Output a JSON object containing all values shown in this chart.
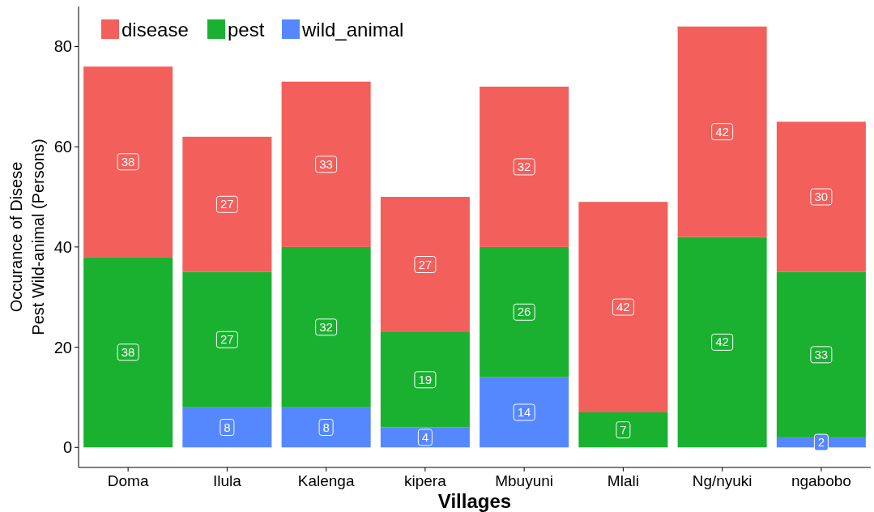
{
  "chart_data": {
    "type": "bar",
    "stacked": true,
    "xlabel": "Villages",
    "ylabel": "Occurance of Disese\nPest Wild-animal (Persons)",
    "categories": [
      "Doma",
      "Ilula",
      "Kalenga",
      "kipera",
      "Mbuyuni",
      "Mlali",
      "Ng/nyuki",
      "ngabobo"
    ],
    "series": [
      {
        "name": "wild_animal",
        "color": "#5588ff",
        "values": [
          null,
          8,
          8,
          4,
          14,
          null,
          null,
          2
        ]
      },
      {
        "name": "pest",
        "color": "#1ab130",
        "values": [
          38,
          27,
          32,
          19,
          26,
          7,
          42,
          33
        ]
      },
      {
        "name": "disease",
        "color": "#f35f5a",
        "values": [
          38,
          27,
          33,
          27,
          32,
          42,
          42,
          30
        ]
      }
    ],
    "ylim": [
      -4,
      88
    ],
    "yticks": [
      0,
      20,
      40,
      60,
      80
    ],
    "legend": "top left",
    "data_labels": true
  }
}
